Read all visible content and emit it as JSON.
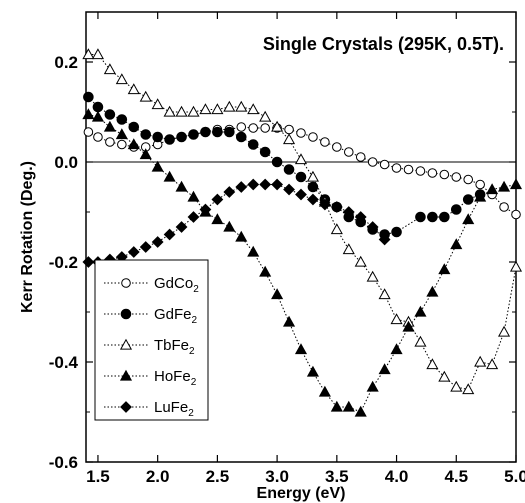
{
  "chart_data": {
    "type": "scatter",
    "title": "Single Crystals (295K, 0.5T).",
    "xlabel": "Energy (eV)",
    "ylabel": "Kerr Rotation (Deg.)",
    "xlim": [
      1.4,
      5.0
    ],
    "ylim": [
      -0.6,
      0.3
    ],
    "xticks": [
      "1.5",
      "2.0",
      "2.5",
      "3.0",
      "3.5",
      "4.0",
      "4.5",
      "5.0"
    ],
    "yticks": [
      "0.2",
      "0.0",
      "-0.2",
      "-0.4",
      "-0.6"
    ],
    "grid": false,
    "legend_position": "lower-left",
    "series": [
      {
        "name": "GdCo",
        "sub": "2",
        "marker": "circle-open",
        "x": [
          1.42,
          1.5,
          1.6,
          1.7,
          1.8,
          1.9,
          2.0,
          2.1,
          2.2,
          2.3,
          2.4,
          2.5,
          2.6,
          2.7,
          2.8,
          2.9,
          3.0,
          3.1,
          3.2,
          3.3,
          3.4,
          3.5,
          3.6,
          3.7,
          3.8,
          3.9,
          4.0,
          4.1,
          4.2,
          4.3,
          4.4,
          4.5,
          4.6,
          4.7,
          4.8,
          4.9,
          5.0
        ],
        "y": [
          0.06,
          0.05,
          0.04,
          0.035,
          0.03,
          0.03,
          0.035,
          0.045,
          0.05,
          0.055,
          0.06,
          0.065,
          0.065,
          0.07,
          0.068,
          0.068,
          0.068,
          0.065,
          0.058,
          0.05,
          0.04,
          0.03,
          0.02,
          0.01,
          0.0,
          -0.005,
          -0.012,
          -0.015,
          -0.018,
          -0.022,
          -0.025,
          -0.03,
          -0.035,
          -0.045,
          -0.065,
          -0.09,
          -0.105
        ]
      },
      {
        "name": "GdFe",
        "sub": "2",
        "marker": "circle-filled",
        "x": [
          1.42,
          1.5,
          1.6,
          1.7,
          1.8,
          1.9,
          2.0,
          2.1,
          2.2,
          2.3,
          2.4,
          2.5,
          2.6,
          2.7,
          2.8,
          2.9,
          3.0,
          3.1,
          3.2,
          3.3,
          3.4,
          3.5,
          3.6,
          3.7,
          3.8,
          3.9,
          4.0,
          4.2,
          4.3,
          4.4,
          4.5,
          4.6,
          4.7
        ],
        "y": [
          0.13,
          0.11,
          0.095,
          0.085,
          0.07,
          0.055,
          0.05,
          0.045,
          0.05,
          0.055,
          0.06,
          0.06,
          0.06,
          0.05,
          0.035,
          0.02,
          0.0,
          -0.015,
          -0.03,
          -0.05,
          -0.075,
          -0.09,
          -0.11,
          -0.12,
          -0.135,
          -0.145,
          -0.14,
          -0.11,
          -0.11,
          -0.11,
          -0.095,
          -0.075,
          -0.065
        ]
      },
      {
        "name": "TbFe",
        "sub": "2",
        "marker": "triangle-open",
        "x": [
          1.42,
          1.5,
          1.6,
          1.7,
          1.8,
          1.9,
          2.0,
          2.1,
          2.2,
          2.3,
          2.4,
          2.5,
          2.6,
          2.7,
          2.8,
          2.9,
          3.0,
          3.1,
          3.2,
          3.3,
          3.4,
          3.5,
          3.6,
          3.7,
          3.8,
          3.9,
          4.0,
          4.1,
          4.2,
          4.3,
          4.4,
          4.5,
          4.6,
          4.7,
          4.8,
          4.9,
          5.0
        ],
        "y": [
          0.215,
          0.215,
          0.185,
          0.165,
          0.145,
          0.13,
          0.115,
          0.1,
          0.1,
          0.1,
          0.105,
          0.105,
          0.11,
          0.11,
          0.105,
          0.09,
          0.07,
          0.045,
          0.005,
          -0.03,
          -0.08,
          -0.135,
          -0.175,
          -0.2,
          -0.23,
          -0.265,
          -0.315,
          -0.32,
          -0.36,
          -0.405,
          -0.43,
          -0.45,
          -0.455,
          -0.4,
          -0.405,
          -0.34,
          -0.21
        ]
      },
      {
        "name": "HoFe",
        "sub": "2",
        "marker": "triangle-filled",
        "x": [
          1.42,
          1.5,
          1.6,
          1.7,
          1.8,
          1.9,
          2.0,
          2.1,
          2.2,
          2.3,
          2.4,
          2.5,
          2.6,
          2.7,
          2.8,
          2.9,
          3.0,
          3.1,
          3.2,
          3.3,
          3.4,
          3.5,
          3.6,
          3.7,
          3.8,
          3.9,
          4.0,
          4.1,
          4.2,
          4.3,
          4.4,
          4.5,
          4.6,
          4.7,
          4.8,
          4.9,
          5.0
        ],
        "y": [
          0.095,
          0.09,
          0.07,
          0.055,
          0.035,
          0.015,
          -0.01,
          -0.03,
          -0.05,
          -0.07,
          -0.1,
          -0.115,
          -0.13,
          -0.15,
          -0.18,
          -0.22,
          -0.265,
          -0.32,
          -0.375,
          -0.42,
          -0.46,
          -0.49,
          -0.49,
          -0.5,
          -0.45,
          -0.415,
          -0.375,
          -0.33,
          -0.3,
          -0.26,
          -0.215,
          -0.165,
          -0.115,
          -0.07,
          -0.055,
          -0.05,
          -0.045
        ]
      },
      {
        "name": "LuFe",
        "sub": "2",
        "marker": "diamond-filled",
        "x": [
          1.42,
          1.5,
          1.6,
          1.7,
          1.8,
          1.9,
          2.0,
          2.1,
          2.2,
          2.3,
          2.4,
          2.5,
          2.6,
          2.7,
          2.8,
          2.9,
          3.0,
          3.1,
          3.2,
          3.3,
          3.4,
          3.5,
          3.6,
          3.7,
          3.8,
          3.9
        ],
        "y": [
          -0.2,
          -0.2,
          -0.195,
          -0.19,
          -0.18,
          -0.17,
          -0.16,
          -0.145,
          -0.13,
          -0.11,
          -0.095,
          -0.075,
          -0.06,
          -0.05,
          -0.045,
          -0.045,
          -0.045,
          -0.055,
          -0.065,
          -0.075,
          -0.085,
          -0.09,
          -0.1,
          -0.11,
          -0.13,
          -0.155
        ]
      }
    ]
  }
}
